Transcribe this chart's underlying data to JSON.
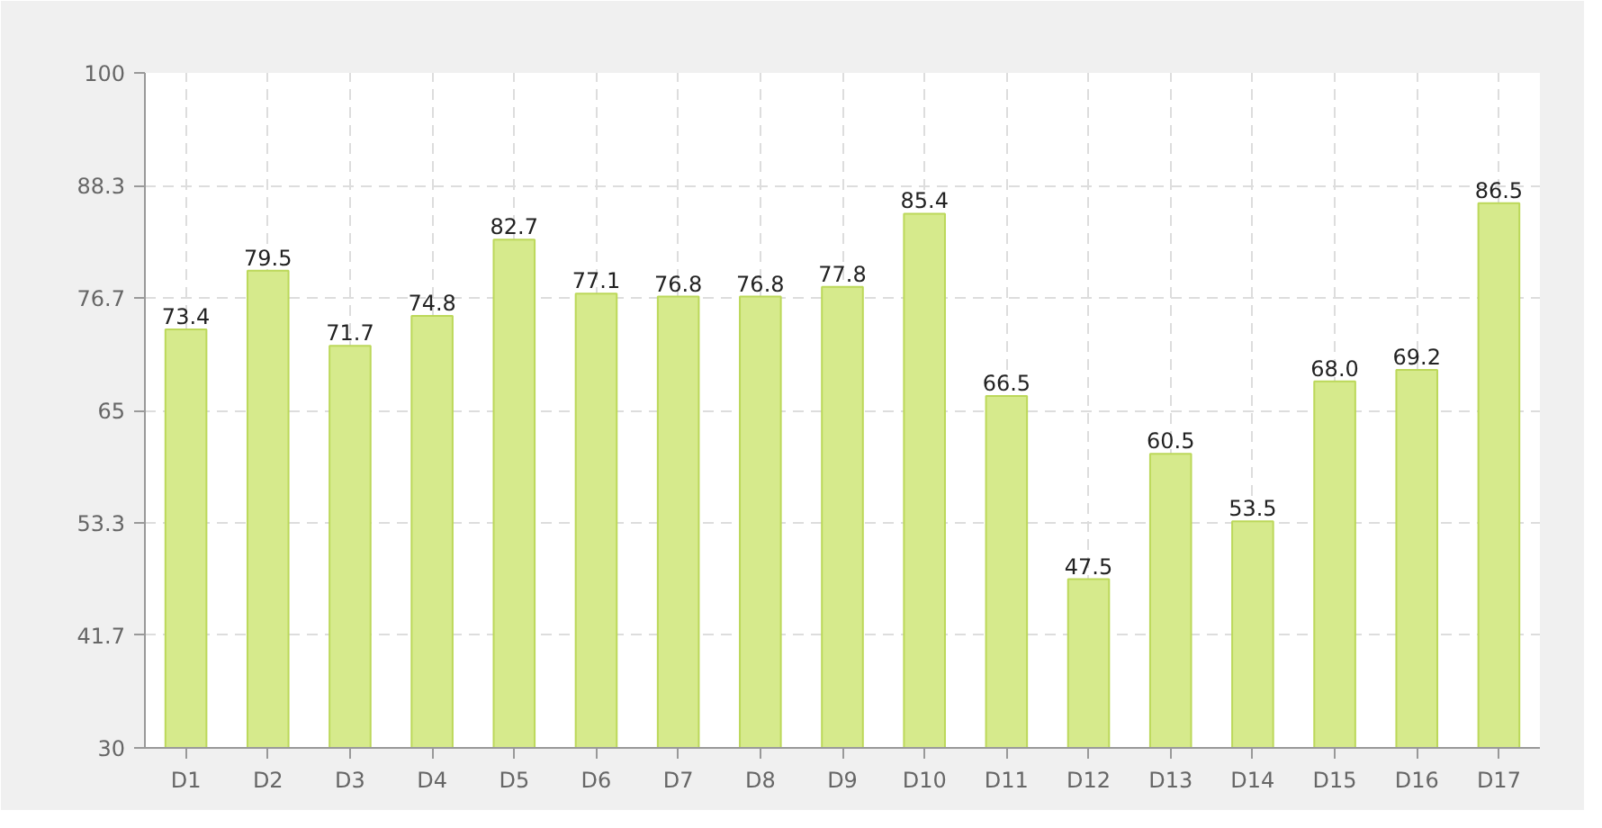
{
  "chart_data": {
    "type": "bar",
    "categories": [
      "D1",
      "D2",
      "D3",
      "D4",
      "D5",
      "D6",
      "D7",
      "D8",
      "D9",
      "D10",
      "D11",
      "D12",
      "D13",
      "D14",
      "D15",
      "D16",
      "D17"
    ],
    "values": [
      73.4,
      79.5,
      71.7,
      74.8,
      82.7,
      77.1,
      76.8,
      76.8,
      77.8,
      85.4,
      66.5,
      47.5,
      60.5,
      53.5,
      68.0,
      69.2,
      86.5
    ],
    "color": "#d6ea8c",
    "ylim": [
      30,
      100
    ],
    "yticks": [
      30,
      {
        "value": 41.667,
        "label": "41.7"
      },
      {
        "value": 53.333,
        "label": "53.3"
      },
      65,
      {
        "value": 76.667,
        "label": "76.7"
      },
      {
        "value": 88.333,
        "label": "88.3"
      },
      100
    ],
    "grid": true,
    "value_labels": [
      "73.4",
      "79.5",
      "71.7",
      "74.8",
      "82.7",
      "77.1",
      "76.8",
      "76.8",
      "77.8",
      "85.4",
      "66.5",
      "47.5",
      "60.5",
      "53.5",
      "68.0",
      "69.2",
      "86.5"
    ]
  }
}
